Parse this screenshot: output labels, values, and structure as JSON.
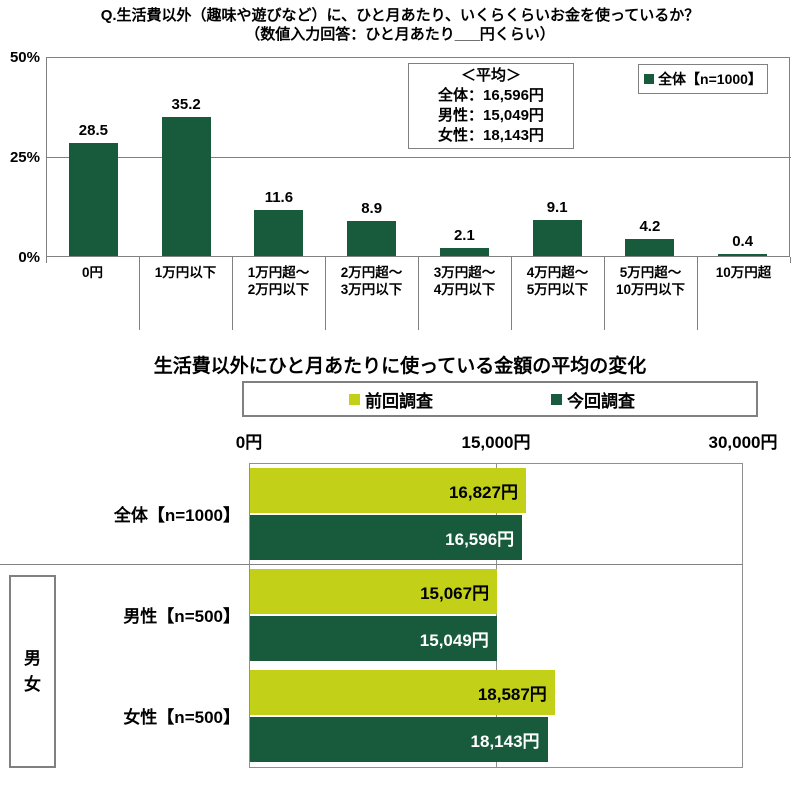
{
  "colors": {
    "bar_dark_green": "#175A3C",
    "bar_yellow_green": "#C2D118",
    "border_gray": "#808080",
    "label_on_green": "#FFFFFF",
    "label_on_yellow": "#000000"
  },
  "top_chart": {
    "title_line1": "Q.生活費以外（趣味や遊びなど）に、ひと月あたり、いくらくらいお金を使っているか？",
    "title_line2": "（数値入力回答：ひと月あたり___円くらい）",
    "legend_label": "全体【n=1000】",
    "average_box": {
      "title": "＜平均＞",
      "lines": [
        "全体：16,596円",
        "男性：15,049円",
        "女性：18,143円"
      ]
    }
  },
  "bottom_chart": {
    "title": "生活費以外にひと月あたりに使っている金額の平均の変化"
  },
  "chart_data": [
    {
      "type": "bar",
      "title": "Q.生活費以外（趣味や遊びなど）に、ひと月あたり、いくらくらいお金を使っているか？（数値入力回答：ひと月あたり___円くらい）",
      "legend": [
        "全体【n=1000】"
      ],
      "legend_position": "top-right",
      "categories": [
        "0円",
        "1万円以下",
        "1万円超～2万円以下",
        "2万円超～3万円以下",
        "3万円超～4万円以下",
        "4万円超～5万円以下",
        "5万円超～10万円以下",
        "10万円超"
      ],
      "category_label_lines": [
        [
          "0円"
        ],
        [
          "1万円以下"
        ],
        [
          "1万円超～",
          "2万円以下"
        ],
        [
          "2万円超～",
          "3万円以下"
        ],
        [
          "3万円超～",
          "4万円以下"
        ],
        [
          "4万円超～",
          "5万円以下"
        ],
        [
          "5万円超～",
          "10万円以下"
        ],
        [
          "10万円超"
        ]
      ],
      "values": [
        28.5,
        35.2,
        11.6,
        8.9,
        2.1,
        9.1,
        4.2,
        0.4
      ],
      "ylabel": "%",
      "ylim": [
        0,
        50
      ],
      "y_ticks": [
        0,
        25,
        50
      ],
      "y_tick_labels_top_to_bottom": [
        "50%",
        "25%",
        "0%"
      ],
      "gridlines_y": [
        25
      ],
      "grid": "on"
    },
    {
      "type": "bar-horizontal",
      "title": "生活費以外にひと月あたりに使っている金額の平均の変化",
      "categories": [
        "全体【n=1000】",
        "男性【n=500】",
        "女性【n=500】"
      ],
      "series": [
        {
          "name": "前回調査",
          "values": [
            16827,
            15067,
            18587
          ],
          "value_labels": [
            "16,827円",
            "15,067円",
            "18,587円"
          ],
          "color": "#C2D118"
        },
        {
          "name": "今回調査",
          "values": [
            16596,
            15049,
            18143
          ],
          "value_labels": [
            "16,596円",
            "15,049円",
            "18,143円"
          ],
          "color": "#175A3C"
        }
      ],
      "xlim": [
        0,
        30000
      ],
      "x_ticks": [
        0,
        15000,
        30000
      ],
      "x_tick_labels": [
        "0円",
        "15,000円",
        "30,000円"
      ],
      "gridlines_x": [
        15000
      ],
      "legend_position": "top",
      "group_label": "男女",
      "grouped_categories": [
        "男性【n=500】",
        "女性【n=500】"
      ]
    }
  ]
}
